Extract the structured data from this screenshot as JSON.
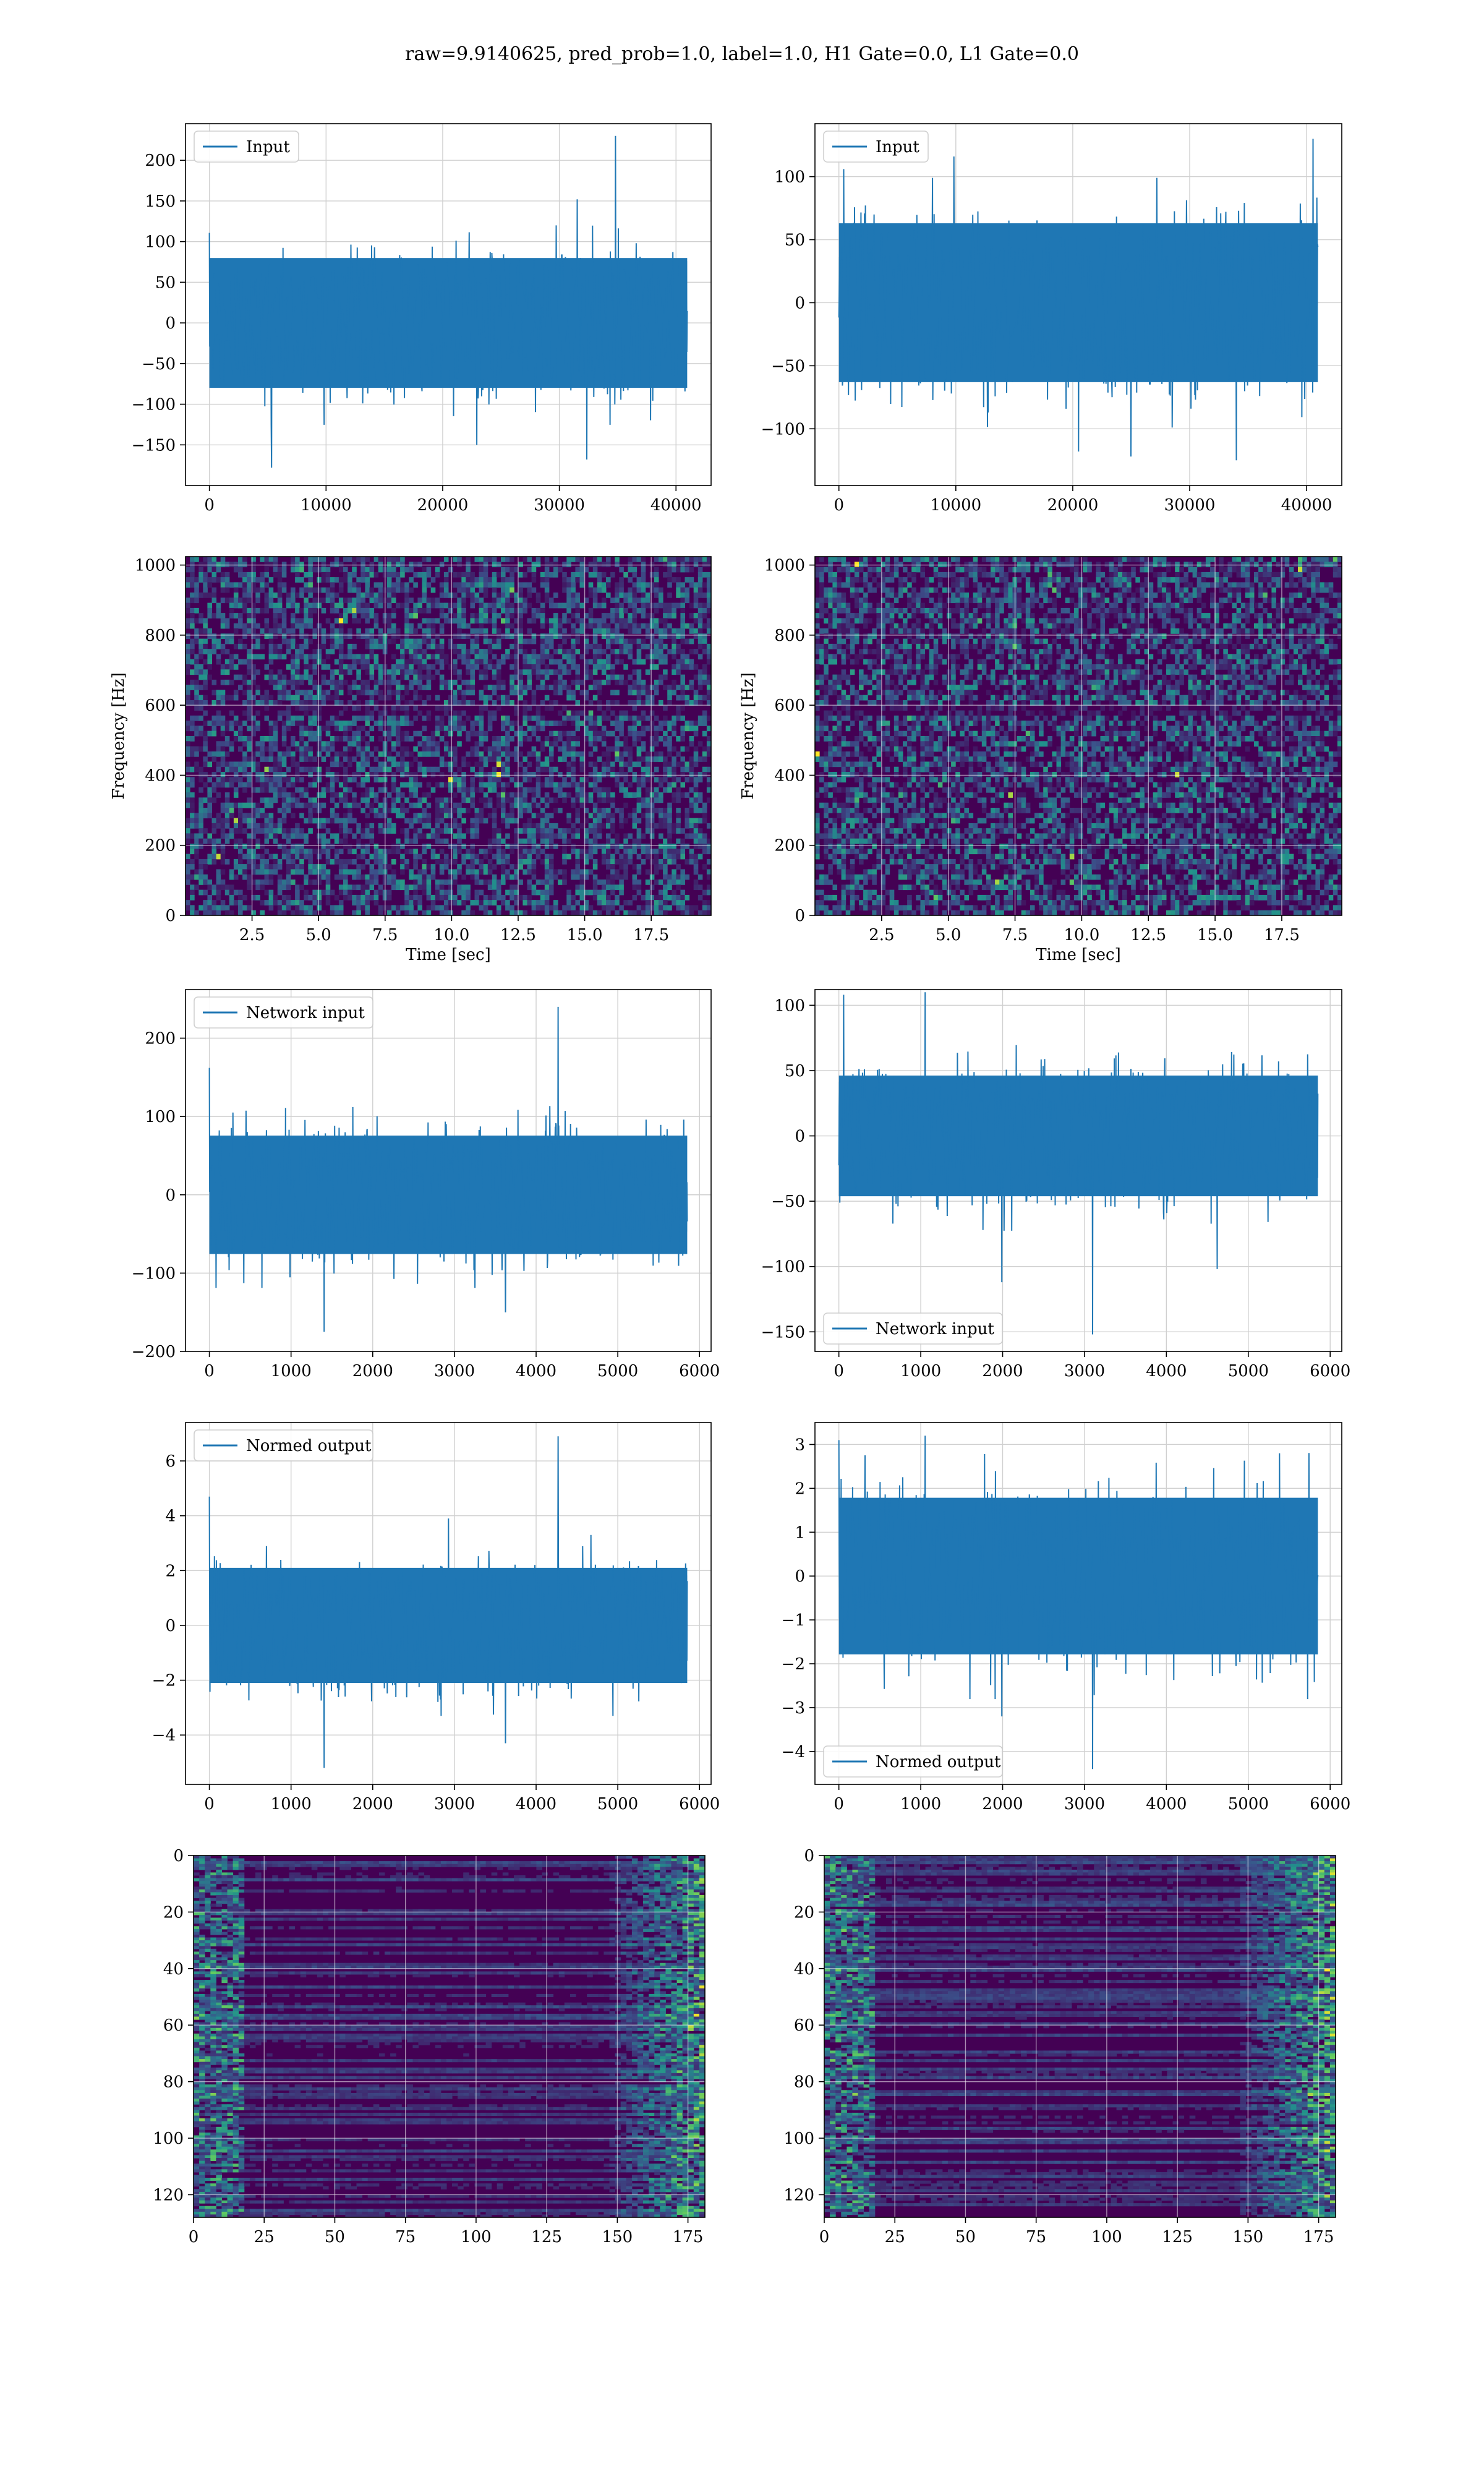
{
  "figure": {
    "title": "raw=9.9140625, pred_prob=1.0, label=1.0, H1 Gate=0.0, L1 Gate=0.0"
  },
  "colors": {
    "series": "#1f77b4",
    "grid": "#d0d0d0",
    "viridis_dark": "#440154",
    "viridis_blue": "#3b528b",
    "viridis_teal": "#21918c",
    "viridis_green": "#5ec962",
    "viridis_yellow": "#fde725"
  },
  "chart_data": [
    {
      "id": "h1-input",
      "type": "line",
      "series": [
        {
          "name": "Input",
          "n_samples": 40960
        }
      ],
      "legend_loc": "upper left",
      "xlim": [
        -2048,
        43008
      ],
      "ylim": [
        -200,
        245
      ],
      "xticks": [
        0,
        10000,
        20000,
        30000,
        40000
      ],
      "xtick_labels": [
        "0",
        "10000",
        "20000",
        "30000",
        "40000"
      ],
      "yticks": [
        -150,
        -100,
        -50,
        0,
        50,
        100,
        150,
        200
      ],
      "ytick_labels": [
        "−150",
        "−100",
        "−50",
        "0",
        "50",
        "100",
        "150",
        "200"
      ],
      "xlabel": "",
      "ylabel": "",
      "grid": true
    },
    {
      "id": "l1-input",
      "type": "line",
      "series": [
        {
          "name": "Input",
          "n_samples": 40960
        }
      ],
      "legend_loc": "upper left",
      "xlim": [
        -2048,
        43008
      ],
      "ylim": [
        -145,
        142
      ],
      "xticks": [
        0,
        10000,
        20000,
        30000,
        40000
      ],
      "xtick_labels": [
        "0",
        "10000",
        "20000",
        "30000",
        "40000"
      ],
      "yticks": [
        -100,
        -50,
        0,
        50,
        100
      ],
      "ytick_labels": [
        "−100",
        "−50",
        "0",
        "50",
        "100"
      ],
      "xlabel": "",
      "ylabel": "",
      "grid": true
    },
    {
      "id": "h1-spectrogram",
      "type": "heatmap",
      "colormap": "viridis",
      "xlim": [
        0,
        19.75
      ],
      "ylim": [
        0,
        1024
      ],
      "xticks": [
        2.5,
        5.0,
        7.5,
        10.0,
        12.5,
        15.0,
        17.5
      ],
      "xtick_labels": [
        "2.5",
        "5.0",
        "7.5",
        "10.0",
        "12.5",
        "15.0",
        "17.5"
      ],
      "yticks": [
        0,
        200,
        400,
        600,
        800,
        1000
      ],
      "ytick_labels": [
        "0",
        "200",
        "400",
        "600",
        "800",
        "1000"
      ],
      "xlabel": "Time [sec]",
      "ylabel": "Frequency [Hz]",
      "grid": true
    },
    {
      "id": "l1-spectrogram",
      "type": "heatmap",
      "colormap": "viridis",
      "xlim": [
        0,
        19.75
      ],
      "ylim": [
        0,
        1024
      ],
      "xticks": [
        2.5,
        5.0,
        7.5,
        10.0,
        12.5,
        15.0,
        17.5
      ],
      "xtick_labels": [
        "2.5",
        "5.0",
        "7.5",
        "10.0",
        "12.5",
        "15.0",
        "17.5"
      ],
      "yticks": [
        0,
        200,
        400,
        600,
        800,
        1000
      ],
      "ytick_labels": [
        "0",
        "200",
        "400",
        "600",
        "800",
        "1000"
      ],
      "xlabel": "Time [sec]",
      "ylabel": "Frequency [Hz]",
      "grid": true
    },
    {
      "id": "h1-network-input",
      "type": "line",
      "series": [
        {
          "name": "Network input",
          "n_samples": 5850
        }
      ],
      "legend_loc": "upper left",
      "xlim": [
        -292,
        6142
      ],
      "ylim": [
        -200,
        262
      ],
      "xticks": [
        0,
        1000,
        2000,
        3000,
        4000,
        5000,
        6000
      ],
      "xtick_labels": [
        "0",
        "1000",
        "2000",
        "3000",
        "4000",
        "5000",
        "6000"
      ],
      "yticks": [
        -200,
        -100,
        0,
        100,
        200
      ],
      "ytick_labels": [
        "−200",
        "−100",
        "0",
        "100",
        "200"
      ],
      "xlabel": "",
      "ylabel": "",
      "grid": true
    },
    {
      "id": "l1-network-input",
      "type": "line",
      "series": [
        {
          "name": "Network input",
          "n_samples": 5850
        }
      ],
      "legend_loc": "lower left",
      "xlim": [
        -292,
        6142
      ],
      "ylim": [
        -165,
        112
      ],
      "xticks": [
        0,
        1000,
        2000,
        3000,
        4000,
        5000,
        6000
      ],
      "xtick_labels": [
        "0",
        "1000",
        "2000",
        "3000",
        "4000",
        "5000",
        "6000"
      ],
      "yticks": [
        -150,
        -100,
        -50,
        0,
        50,
        100
      ],
      "ytick_labels": [
        "−150",
        "−100",
        "−50",
        "0",
        "50",
        "100"
      ],
      "xlabel": "",
      "ylabel": "",
      "grid": true
    },
    {
      "id": "h1-normed-output",
      "type": "line",
      "series": [
        {
          "name": "Normed output",
          "n_samples": 5850
        }
      ],
      "legend_loc": "upper left",
      "xlim": [
        -292,
        6142
      ],
      "ylim": [
        -5.8,
        7.4
      ],
      "xticks": [
        0,
        1000,
        2000,
        3000,
        4000,
        5000,
        6000
      ],
      "xtick_labels": [
        "0",
        "1000",
        "2000",
        "3000",
        "4000",
        "5000",
        "6000"
      ],
      "yticks": [
        -4,
        -2,
        0,
        2,
        4,
        6
      ],
      "ytick_labels": [
        "−4",
        "−2",
        "0",
        "2",
        "4",
        "6"
      ],
      "xlabel": "",
      "ylabel": "",
      "grid": true
    },
    {
      "id": "l1-normed-output",
      "type": "line",
      "series": [
        {
          "name": "Normed output",
          "n_samples": 5850
        }
      ],
      "legend_loc": "lower left",
      "xlim": [
        -292,
        6142
      ],
      "ylim": [
        -4.75,
        3.5
      ],
      "xticks": [
        0,
        1000,
        2000,
        3000,
        4000,
        5000,
        6000
      ],
      "xtick_labels": [
        "0",
        "1000",
        "2000",
        "3000",
        "4000",
        "5000",
        "6000"
      ],
      "yticks": [
        -4,
        -3,
        -2,
        -1,
        0,
        1,
        2,
        3
      ],
      "ytick_labels": [
        "−4",
        "−3",
        "−2",
        "−1",
        "0",
        "1",
        "2",
        "3"
      ],
      "xlabel": "",
      "ylabel": "",
      "grid": true
    },
    {
      "id": "h1-feature-map",
      "type": "heatmap",
      "colormap": "viridis",
      "xlim": [
        0,
        181
      ],
      "ylim": [
        128,
        0
      ],
      "xticks": [
        0,
        25,
        50,
        75,
        100,
        125,
        150,
        175
      ],
      "xtick_labels": [
        "0",
        "25",
        "50",
        "75",
        "100",
        "125",
        "150",
        "175"
      ],
      "yticks": [
        0,
        20,
        40,
        60,
        80,
        100,
        120
      ],
      "ytick_labels": [
        "0",
        "20",
        "40",
        "60",
        "80",
        "100",
        "120"
      ],
      "xlabel": "",
      "ylabel": "",
      "grid": true
    },
    {
      "id": "l1-feature-map",
      "type": "heatmap",
      "colormap": "viridis",
      "xlim": [
        0,
        181
      ],
      "ylim": [
        128,
        0
      ],
      "xticks": [
        0,
        25,
        50,
        75,
        100,
        125,
        150,
        175
      ],
      "xtick_labels": [
        "0",
        "25",
        "50",
        "75",
        "100",
        "125",
        "150",
        "175"
      ],
      "yticks": [
        0,
        20,
        40,
        60,
        80,
        100,
        120
      ],
      "ytick_labels": [
        "0",
        "20",
        "40",
        "60",
        "80",
        "100",
        "120"
      ],
      "xlabel": "",
      "ylabel": "",
      "grid": true
    }
  ]
}
